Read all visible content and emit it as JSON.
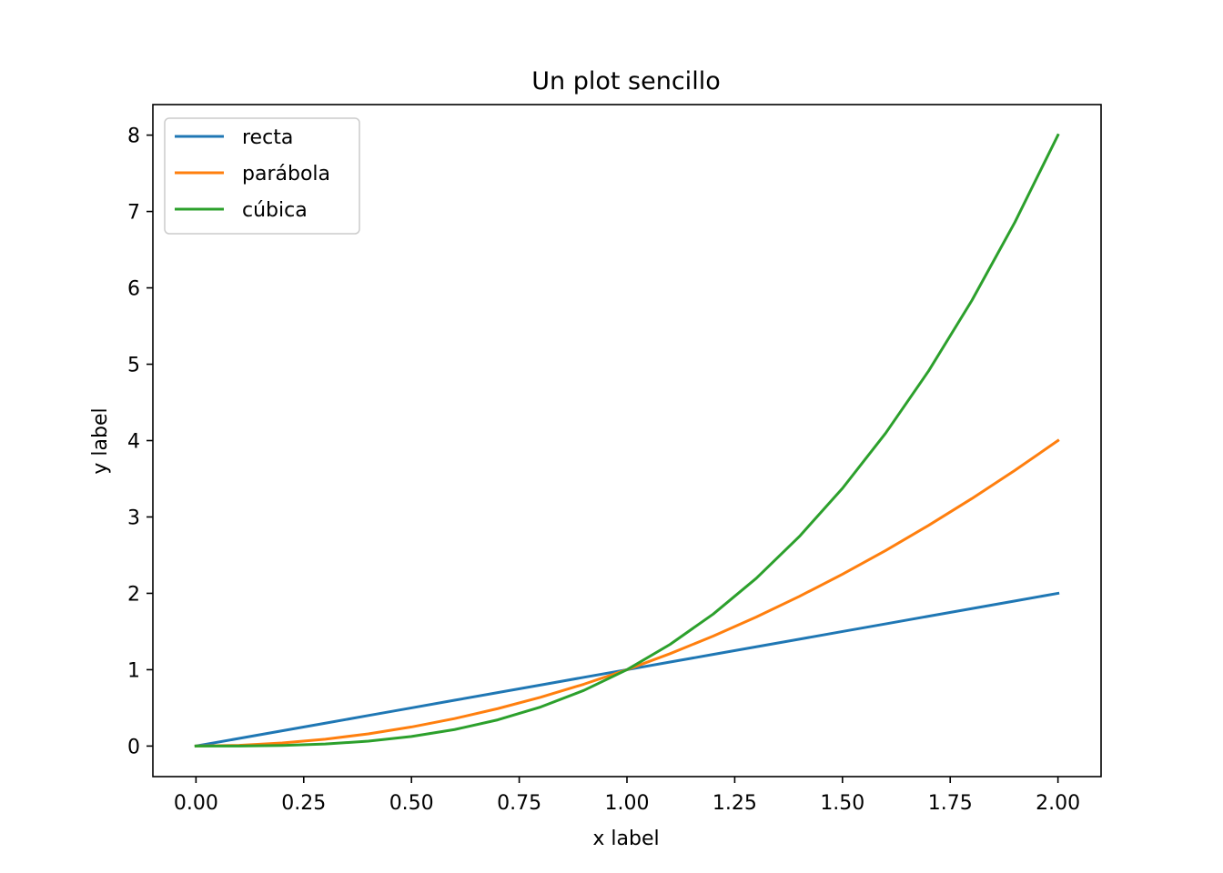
{
  "chart_data": {
    "type": "line",
    "title": "Un plot sencillo",
    "xlabel": "x label",
    "ylabel": "y label",
    "xlim": [
      -0.1,
      2.1
    ],
    "ylim": [
      -0.4,
      8.4
    ],
    "xticks": [
      0.0,
      0.25,
      0.5,
      0.75,
      1.0,
      1.25,
      1.5,
      1.75,
      2.0
    ],
    "xtick_labels": [
      "0.00",
      "0.25",
      "0.50",
      "0.75",
      "1.00",
      "1.25",
      "1.50",
      "1.75",
      "2.00"
    ],
    "yticks": [
      0,
      1,
      2,
      3,
      4,
      5,
      6,
      7,
      8
    ],
    "ytick_labels": [
      "0",
      "1",
      "2",
      "3",
      "4",
      "5",
      "6",
      "7",
      "8"
    ],
    "grid": false,
    "legend_position": "top-left",
    "x": [
      0.0,
      0.1,
      0.2,
      0.3,
      0.4,
      0.5,
      0.6,
      0.7,
      0.8,
      0.9,
      1.0,
      1.1,
      1.2,
      1.3,
      1.4,
      1.5,
      1.6,
      1.7,
      1.8,
      1.9,
      2.0
    ],
    "series": [
      {
        "name": "recta",
        "color": "#1f77b4",
        "values": [
          0.0,
          0.1,
          0.2,
          0.3,
          0.4,
          0.5,
          0.6,
          0.7,
          0.8,
          0.9,
          1.0,
          1.1,
          1.2,
          1.3,
          1.4,
          1.5,
          1.6,
          1.7,
          1.8,
          1.9,
          2.0
        ]
      },
      {
        "name": "parábola",
        "color": "#ff7f0e",
        "values": [
          0.0,
          0.01,
          0.04,
          0.09,
          0.16,
          0.25,
          0.36,
          0.49,
          0.64,
          0.81,
          1.0,
          1.21,
          1.44,
          1.69,
          1.96,
          2.25,
          2.56,
          2.89,
          3.24,
          3.61,
          4.0
        ]
      },
      {
        "name": "cúbica",
        "color": "#2ca02c",
        "values": [
          0.0,
          0.001,
          0.008,
          0.027,
          0.064,
          0.125,
          0.216,
          0.343,
          0.512,
          0.729,
          1.0,
          1.331,
          1.728,
          2.197,
          2.744,
          3.375,
          4.096,
          4.913,
          5.832,
          6.859,
          8.0
        ]
      }
    ]
  }
}
